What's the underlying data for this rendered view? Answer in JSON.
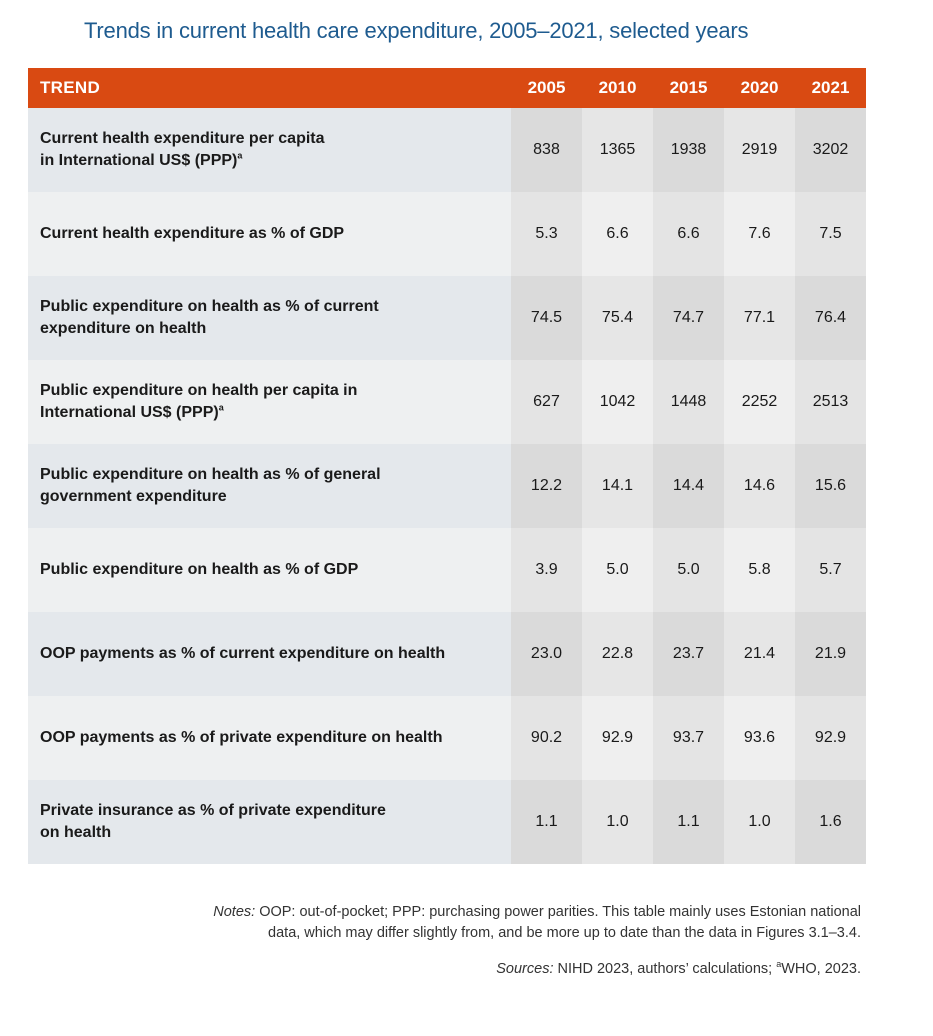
{
  "title": "Trends in current health care expenditure, 2005–2021, selected years",
  "table": {
    "header_label": "TREND",
    "years": [
      "2005",
      "2010",
      "2015",
      "2020",
      "2021"
    ],
    "rows": [
      {
        "label": "Current health expenditure per capita",
        "label2": "in International US$ (PPP)",
        "sup": "a",
        "values": [
          "838",
          "1365",
          "1938",
          "2919",
          "3202"
        ]
      },
      {
        "label": "Current health expenditure as % of GDP",
        "label2": "",
        "sup": "",
        "values": [
          "5.3",
          "6.6",
          "6.6",
          "7.6",
          "7.5"
        ]
      },
      {
        "label": "Public expenditure on health as % of current",
        "label2": "expenditure on health",
        "sup": "",
        "values": [
          "74.5",
          "75.4",
          "74.7",
          "77.1",
          "76.4"
        ]
      },
      {
        "label": "Public expenditure on health per capita in",
        "label2": "International US$ (PPP)",
        "sup": "a",
        "values": [
          "627",
          "1042",
          "1448",
          "2252",
          "2513"
        ]
      },
      {
        "label": "Public expenditure on health as % of general",
        "label2": "government expenditure",
        "sup": "",
        "values": [
          "12.2",
          "14.1",
          "14.4",
          "14.6",
          "15.6"
        ]
      },
      {
        "label": "Public expenditure on health as % of GDP",
        "label2": "",
        "sup": "",
        "values": [
          "3.9",
          "5.0",
          "5.0",
          "5.8",
          "5.7"
        ]
      },
      {
        "label": "OOP payments as % of current expenditure on health",
        "label2": "",
        "sup": "",
        "values": [
          "23.0",
          "22.8",
          "23.7",
          "21.4",
          "21.9"
        ]
      },
      {
        "label": "OOP payments as % of private expenditure on health",
        "label2": "",
        "sup": "",
        "values": [
          "90.2",
          "92.9",
          "93.7",
          "93.6",
          "92.9"
        ]
      },
      {
        "label": "Private insurance as % of private expenditure",
        "label2": "on health",
        "sup": "",
        "values": [
          "1.1",
          "1.0",
          "1.1",
          "1.0",
          "1.6"
        ]
      }
    ]
  },
  "notes": {
    "notes_label": "Notes:",
    "notes_line1": "OOP: out-of-pocket; PPP: purchasing power parities. This table mainly uses Estonian national",
    "notes_line2": "data, which may differ slightly from, and be more up to date than the data in Figures 3.1–3.4.",
    "sources_label": "Sources:",
    "sources_text": "NIHD 2023, authors’ calculations;",
    "sources_sup": "a",
    "sources_tail": "WHO, 2023."
  },
  "colors": {
    "header_bg": "#d94a12",
    "title": "#1e5b8f"
  }
}
